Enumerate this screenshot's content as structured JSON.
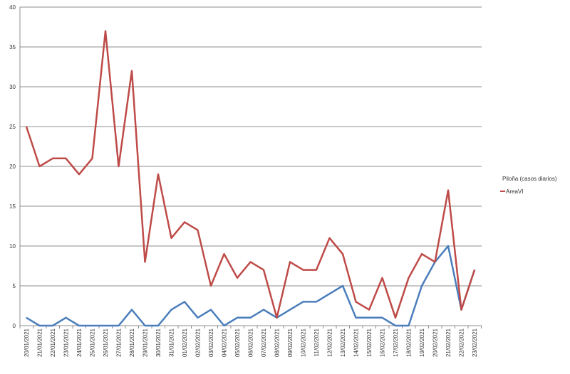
{
  "chart_data": {
    "type": "line",
    "title": "",
    "xlabel": "",
    "ylabel": "",
    "ylim": [
      0,
      40
    ],
    "yticks": [
      0,
      5,
      10,
      15,
      20,
      25,
      30,
      35,
      40
    ],
    "grid": true,
    "legend_position": "right",
    "categories": [
      "20/01/2021",
      "21/01/2021",
      "22/01/2021",
      "23/01/2021",
      "24/01/2021",
      "25/01/2021",
      "26/01/2021",
      "27/01/2021",
      "28/01/2021",
      "29/01/2021",
      "30/01/2021",
      "31/01/2021",
      "01/02/2021",
      "02/02/2021",
      "03/02/2021",
      "04/02/2021",
      "05/02/2021",
      "06/02/2021",
      "07/02/2021",
      "08/02/2021",
      "09/02/2021",
      "10/02/2021",
      "11/02/2021",
      "12/02/2021",
      "13/02/2021",
      "14/02/2021",
      "15/02/2021",
      "16/02/2021",
      "17/02/2021",
      "18/02/2021",
      "19/02/2021",
      "20/02/2021",
      "21/02/2021",
      "22/02/2021",
      "23/02/2021"
    ],
    "series": [
      {
        "name": "Piloña (casos diarios)",
        "color": "#4a7ebb",
        "values": [
          1,
          0,
          0,
          1,
          0,
          0,
          0,
          0,
          2,
          0,
          0,
          2,
          3,
          1,
          2,
          0,
          1,
          1,
          2,
          1,
          2,
          3,
          3,
          4,
          5,
          1,
          1,
          1,
          0,
          0,
          5,
          8,
          10,
          2,
          7
        ]
      },
      {
        "name": "AreaVI",
        "color": "#be4b48",
        "values": [
          25,
          20,
          21,
          21,
          19,
          21,
          37,
          20,
          32,
          8,
          19,
          11,
          13,
          12,
          5,
          9,
          6,
          8,
          7,
          1,
          8,
          7,
          7,
          11,
          9,
          3,
          2,
          6,
          1,
          6,
          9,
          8,
          17,
          2,
          7
        ]
      }
    ]
  }
}
